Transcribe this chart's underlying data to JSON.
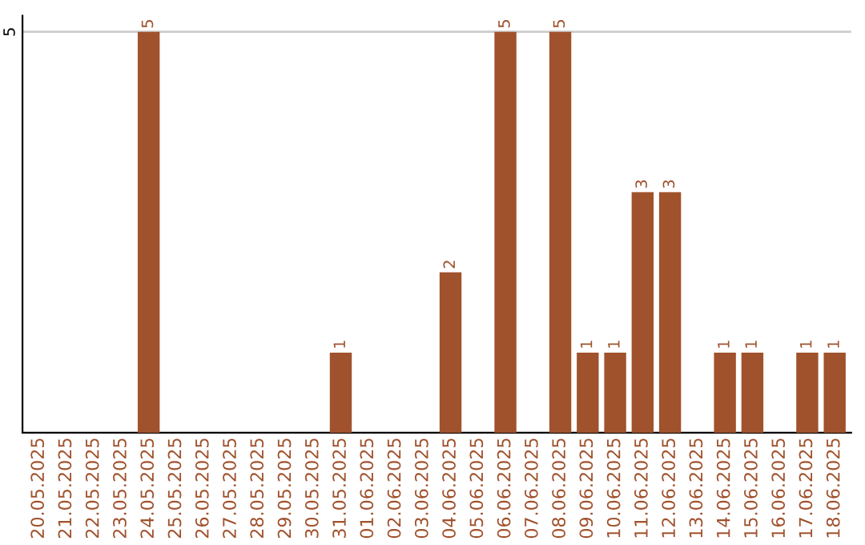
{
  "chart_data": {
    "type": "bar",
    "categories": [
      "20.05.2025",
      "21.05.2025",
      "22.05.2025",
      "23.05.2025",
      "24.05.2025",
      "25.05.2025",
      "26.05.2025",
      "27.05.2025",
      "28.05.2025",
      "29.05.2025",
      "30.05.2025",
      "31.05.2025",
      "01.06.2025",
      "02.06.2025",
      "03.06.2025",
      "04.06.2025",
      "05.06.2025",
      "06.06.2025",
      "07.06.2025",
      "08.06.2025",
      "09.06.2025",
      "10.06.2025",
      "11.06.2025",
      "12.06.2025",
      "13.06.2025",
      "14.06.2025",
      "15.06.2025",
      "16.06.2025",
      "17.06.2025",
      "18.06.2025"
    ],
    "values": [
      0,
      0,
      0,
      0,
      5,
      0,
      0,
      0,
      0,
      0,
      0,
      1,
      0,
      0,
      0,
      2,
      0,
      5,
      0,
      5,
      1,
      1,
      3,
      3,
      0,
      1,
      1,
      0,
      1,
      1
    ],
    "value_labels": [
      null,
      null,
      null,
      null,
      "5",
      null,
      null,
      null,
      null,
      null,
      null,
      "1",
      null,
      null,
      null,
      "2",
      null,
      "5",
      null,
      "5",
      "1",
      "1",
      "3",
      "3",
      null,
      "1",
      "1",
      null,
      "1",
      "1"
    ],
    "color": "#a0522d",
    "ylim": [
      0,
      5.2
    ],
    "yticks": [
      5
    ],
    "grid": "y",
    "legend": false
  }
}
